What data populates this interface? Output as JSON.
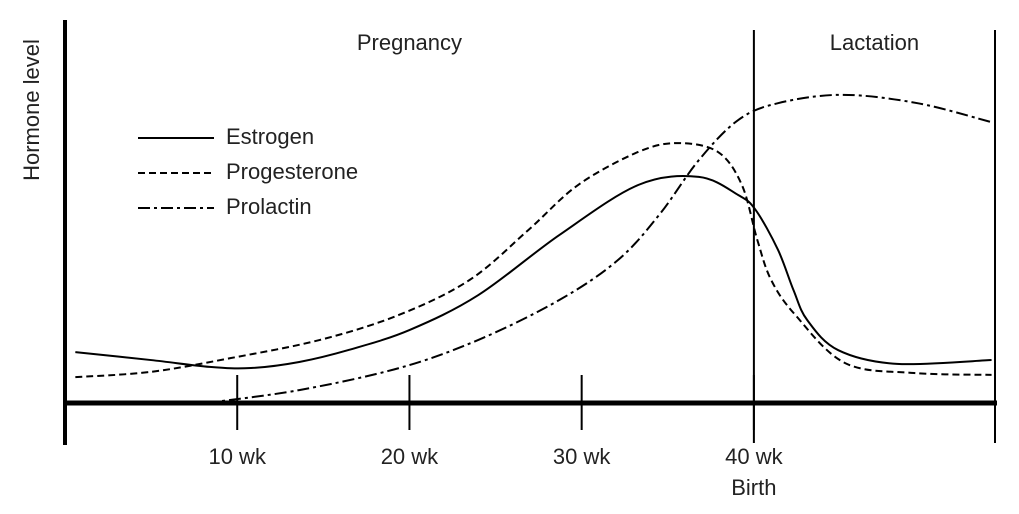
{
  "chart_data": {
    "type": "line",
    "y_label": "Hormone level",
    "xlim": [
      0,
      54
    ],
    "ylim": [
      0,
      100
    ],
    "xticks": [
      {
        "value": 10,
        "label": "10 wk"
      },
      {
        "value": 20,
        "label": "20 wk"
      },
      {
        "value": 30,
        "label": "30 wk"
      },
      {
        "value": 40,
        "label": "40 wk"
      }
    ],
    "annotations": [
      {
        "value": 40,
        "label": "Birth"
      }
    ],
    "regions": [
      {
        "label": "Pregnancy",
        "from": 0,
        "to": 40
      },
      {
        "label": "Lactation",
        "from": 40,
        "to": 54
      }
    ],
    "series": [
      {
        "name": "Estrogen",
        "color": "#000000",
        "dash": "solid",
        "x": [
          0.6,
          5.0,
          8.4,
          10.8,
          13.6,
          16.5,
          20.0,
          24.0,
          28.7,
          33.3,
          36.8,
          39.1,
          40.1,
          41.4,
          42.3,
          43.1,
          44.9,
          48.3,
          53.8
        ],
        "values": [
          13.4,
          11.3,
          9.5,
          9.2,
          10.8,
          14.0,
          19.2,
          28.4,
          44.2,
          57.4,
          59.5,
          54.7,
          50.8,
          40.3,
          29.7,
          21.8,
          13.9,
          10.3,
          11.3
        ]
      },
      {
        "name": "Progesterone",
        "color": "#000000",
        "dash": "dashed",
        "x": [
          0.6,
          5.0,
          9.6,
          14.8,
          19.4,
          23.5,
          26.9,
          29.8,
          33.3,
          35.6,
          37.9,
          39.3,
          40.2,
          41.0,
          42.4,
          45.3,
          49.3,
          53.8
        ],
        "values": [
          6.8,
          8.2,
          11.8,
          16.6,
          23.2,
          32.4,
          45.5,
          57.4,
          66.1,
          68.4,
          66.1,
          57.4,
          42.9,
          32.4,
          23.2,
          10.5,
          7.9,
          7.4
        ]
      },
      {
        "name": "Prolactin",
        "color": "#000000",
        "dash": "dashdot",
        "x": [
          8.2,
          13.6,
          19.4,
          24.0,
          28.7,
          32.1,
          34.5,
          36.8,
          39.1,
          41.4,
          45.1,
          49.5,
          53.8
        ],
        "values": [
          0,
          3.4,
          9.2,
          16.6,
          27.1,
          37.6,
          49.5,
          63.9,
          74.5,
          78.9,
          81.1,
          78.9,
          73.9
        ]
      }
    ]
  }
}
